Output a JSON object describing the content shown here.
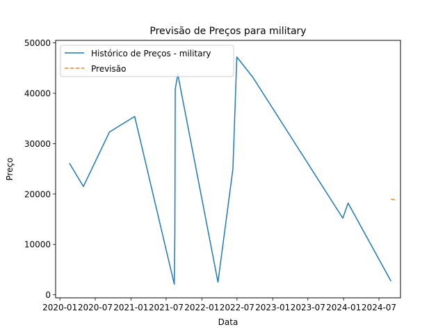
{
  "chart_data": {
    "type": "line",
    "title": "Previsão de Preços para military",
    "xlabel": "Data",
    "ylabel": "Preço",
    "xlim": [
      "2019-12-10",
      "2024-10-20"
    ],
    "ylim": [
      -600,
      50500
    ],
    "grid": false,
    "legend_position": "top-left",
    "x_ticks": [
      {
        "date": "2020-01-01",
        "label": "2020-01"
      },
      {
        "date": "2020-07-01",
        "label": "2020-07"
      },
      {
        "date": "2021-01-01",
        "label": "2021-01"
      },
      {
        "date": "2021-07-01",
        "label": "2021-07"
      },
      {
        "date": "2022-01-01",
        "label": "2022-01"
      },
      {
        "date": "2022-07-01",
        "label": "2022-07"
      },
      {
        "date": "2023-01-01",
        "label": "2023-01"
      },
      {
        "date": "2023-07-01",
        "label": "2023-07"
      },
      {
        "date": "2024-01-01",
        "label": "2024-01"
      },
      {
        "date": "2024-07-01",
        "label": "2024-07"
      }
    ],
    "y_ticks": [
      0,
      10000,
      20000,
      30000,
      40000,
      50000
    ],
    "series": [
      {
        "name": "Histórico de Preços - military",
        "color": "#1f77b4",
        "style": "solid",
        "points": [
          {
            "x": "2020-02-19",
            "y": 26100
          },
          {
            "x": "2020-05-01",
            "y": 21500
          },
          {
            "x": "2020-09-12",
            "y": 32300
          },
          {
            "x": "2021-01-20",
            "y": 35400
          },
          {
            "x": "2021-08-12",
            "y": 2100
          },
          {
            "x": "2021-08-15",
            "y": 12000
          },
          {
            "x": "2021-08-17",
            "y": 40800
          },
          {
            "x": "2021-08-30",
            "y": 43800
          },
          {
            "x": "2022-03-25",
            "y": 2500
          },
          {
            "x": "2022-06-10",
            "y": 25000
          },
          {
            "x": "2022-06-30",
            "y": 47200
          },
          {
            "x": "2022-09-20",
            "y": 43200
          },
          {
            "x": "2023-12-28",
            "y": 15200
          },
          {
            "x": "2024-01-24",
            "y": 18200
          },
          {
            "x": "2024-09-01",
            "y": 2700
          }
        ]
      },
      {
        "name": "Previsão",
        "color": "#ff7f0e",
        "style": "dashed",
        "points": [
          {
            "x": "2024-09-01",
            "y": 19000
          },
          {
            "x": "2024-09-25",
            "y": 18800
          }
        ]
      }
    ]
  }
}
